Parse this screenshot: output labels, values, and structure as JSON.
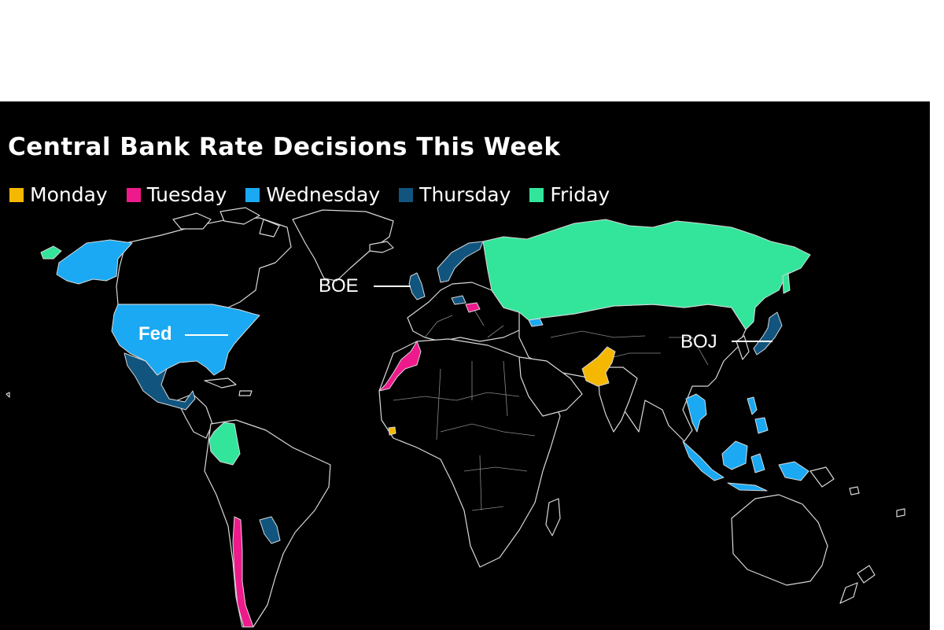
{
  "title": "Central Bank Rate Decisions This Week",
  "legend": [
    {
      "label": "Monday",
      "color": "#f5b800"
    },
    {
      "label": "Tuesday",
      "color": "#ee1a8c"
    },
    {
      "label": "Wednesday",
      "color": "#1aa9f2"
    },
    {
      "label": "Thursday",
      "color": "#11557f"
    },
    {
      "label": "Friday",
      "color": "#33e59a"
    }
  ],
  "annotations": {
    "boe": "BOE",
    "fed": "Fed",
    "boj": "BOJ"
  },
  "regions": [
    {
      "name": "Pakistan",
      "day": "Monday"
    },
    {
      "name": "Sierra Leone",
      "day": "Monday"
    },
    {
      "name": "Morocco",
      "day": "Tuesday"
    },
    {
      "name": "Hungary",
      "day": "Tuesday"
    },
    {
      "name": "Chile",
      "day": "Tuesday"
    },
    {
      "name": "United States",
      "day": "Wednesday"
    },
    {
      "name": "Thailand",
      "day": "Wednesday"
    },
    {
      "name": "Indonesia",
      "day": "Wednesday"
    },
    {
      "name": "Philippines",
      "day": "Wednesday"
    },
    {
      "name": "Georgia",
      "day": "Wednesday"
    },
    {
      "name": "Mexico",
      "day": "Thursday"
    },
    {
      "name": "United Kingdom",
      "day": "Thursday"
    },
    {
      "name": "Norway",
      "day": "Thursday"
    },
    {
      "name": "Japan",
      "day": "Thursday"
    },
    {
      "name": "Paraguay",
      "day": "Thursday"
    },
    {
      "name": "Czech Republic",
      "day": "Thursday"
    },
    {
      "name": "Russia",
      "day": "Friday"
    },
    {
      "name": "Colombia",
      "day": "Friday"
    }
  ]
}
